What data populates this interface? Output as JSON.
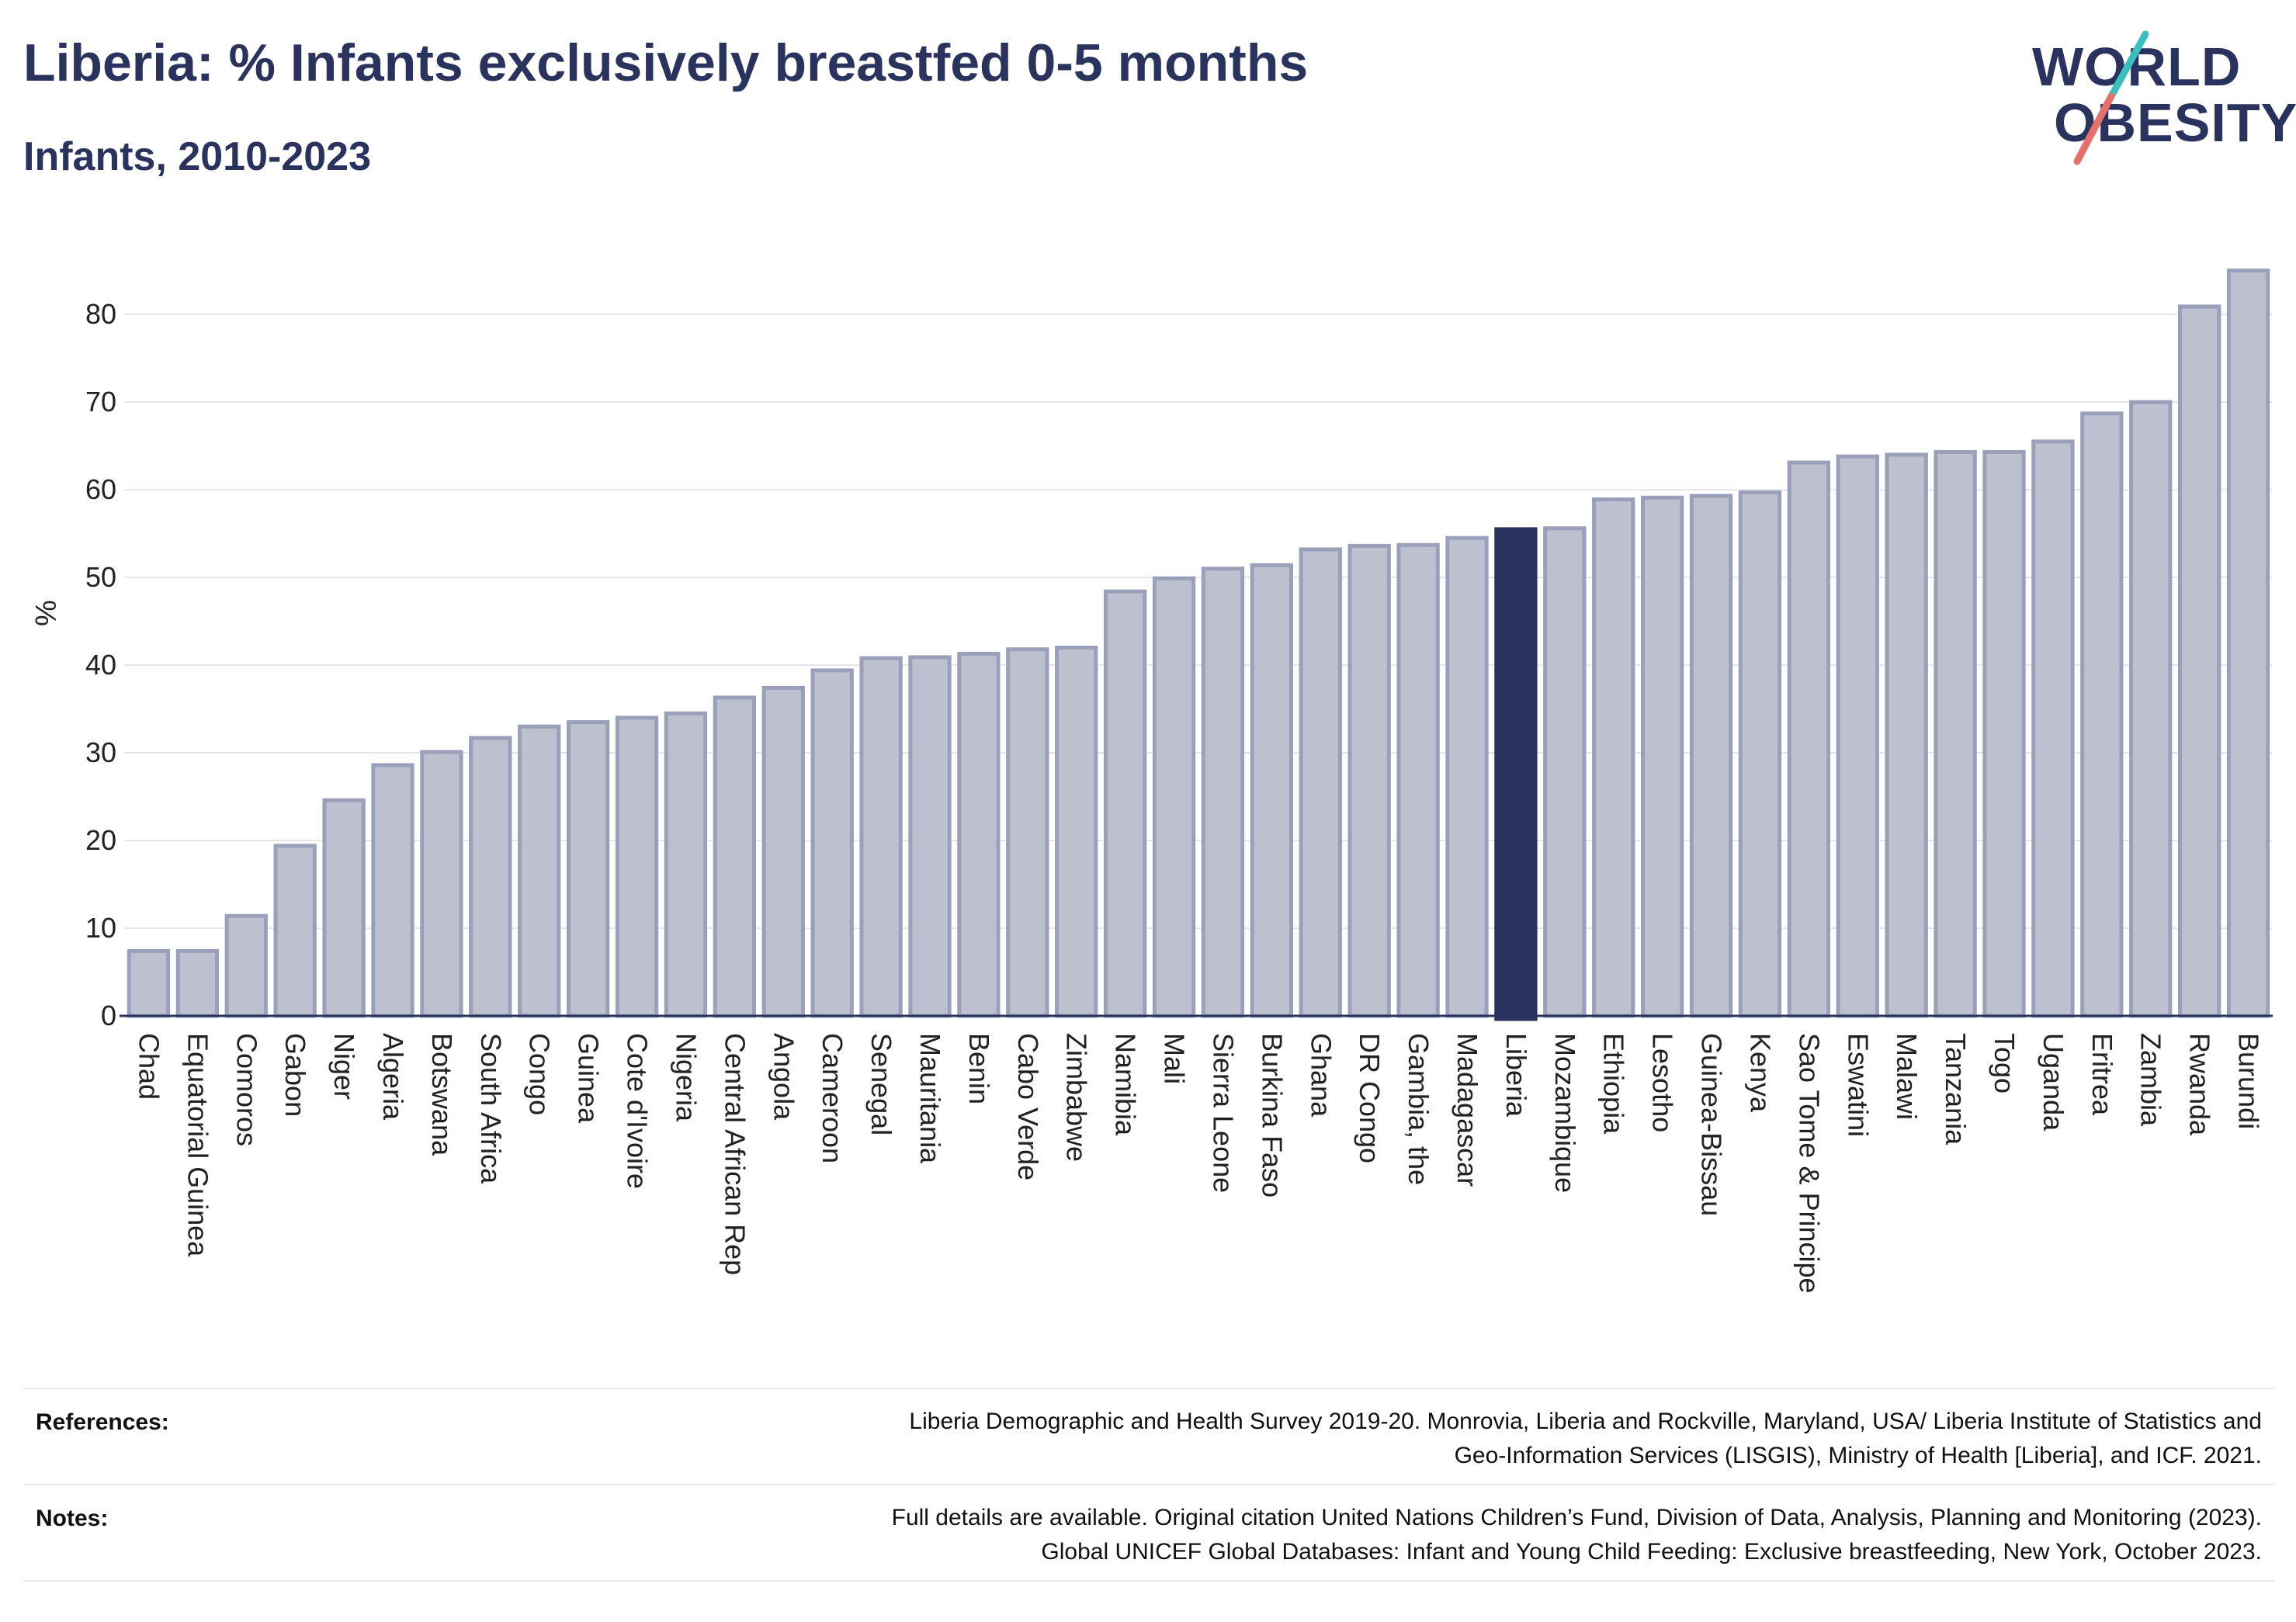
{
  "header": {
    "title": "Liberia: % Infants exclusively breastfed 0-5 months",
    "subtitle": "Infants, 2010-2023"
  },
  "logo": {
    "line1": "WORLD",
    "line2": "OBESITY",
    "text_color": "#2a335e",
    "slash_colors": [
      "#3bbfbf",
      "#e8706a"
    ]
  },
  "colors": {
    "bar": "#bcc0cf",
    "bar_stroke": "#9aa0b9",
    "highlight": "#2a335e",
    "grid": "#e6e6ea",
    "axis": "#2a335e"
  },
  "chart_data": {
    "type": "bar",
    "ylabel": "%",
    "xlabel": "",
    "ylim": [
      0,
      87
    ],
    "yticks": [
      0,
      10,
      20,
      30,
      40,
      50,
      60,
      70,
      80
    ],
    "grid": true,
    "highlight": "Liberia",
    "categories": [
      "Chad",
      "Equatorial Guinea",
      "Comoros",
      "Gabon",
      "Niger",
      "Algeria",
      "Botswana",
      "South Africa",
      "Congo",
      "Guinea",
      "Cote d'Ivoire",
      "Nigeria",
      "Central African Rep",
      "Angola",
      "Cameroon",
      "Senegal",
      "Mauritania",
      "Benin",
      "Cabo Verde",
      "Zimbabwe",
      "Namibia",
      "Mali",
      "Sierra Leone",
      "Burkina Faso",
      "Ghana",
      "DR Congo",
      "Gambia, the",
      "Madagascar",
      "Liberia",
      "Mozambique",
      "Ethiopia",
      "Lesotho",
      "Guinea-Bissau",
      "Kenya",
      "Sao Tome & Principe",
      "Eswatini",
      "Malawi",
      "Tanzania",
      "Togo",
      "Uganda",
      "Eritrea",
      "Zambia",
      "Rwanda",
      "Burundi"
    ],
    "values": [
      7.4,
      7.4,
      11.4,
      19.4,
      24.6,
      28.6,
      30.1,
      31.7,
      33.0,
      33.5,
      34.0,
      34.5,
      36.3,
      37.4,
      39.4,
      40.8,
      40.9,
      41.3,
      41.8,
      42.0,
      48.4,
      49.9,
      51.0,
      51.4,
      53.2,
      53.6,
      53.7,
      54.5,
      55.5,
      55.6,
      58.9,
      59.1,
      59.3,
      59.7,
      63.1,
      63.8,
      64.0,
      64.3,
      64.3,
      65.5,
      68.7,
      70.0,
      80.9,
      85.0
    ]
  },
  "footer": {
    "references_label": "References:",
    "references_line1": "Liberia Demographic and Health Survey 2019-20. Monrovia, Liberia and Rockville, Maryland, USA/ Liberia Institute of Statistics and",
    "references_line2": "Geo-Information Services (LISGIS), Ministry of Health [Liberia], and ICF. 2021.",
    "notes_label": "Notes:",
    "notes_line1": "Full details are available. Original citation United Nations Children’s Fund, Division of Data, Analysis, Planning and Monitoring (2023).",
    "notes_line2": "Global UNICEF Global Databases: Infant and Young Child Feeding: Exclusive breastfeeding, New York, October 2023."
  }
}
